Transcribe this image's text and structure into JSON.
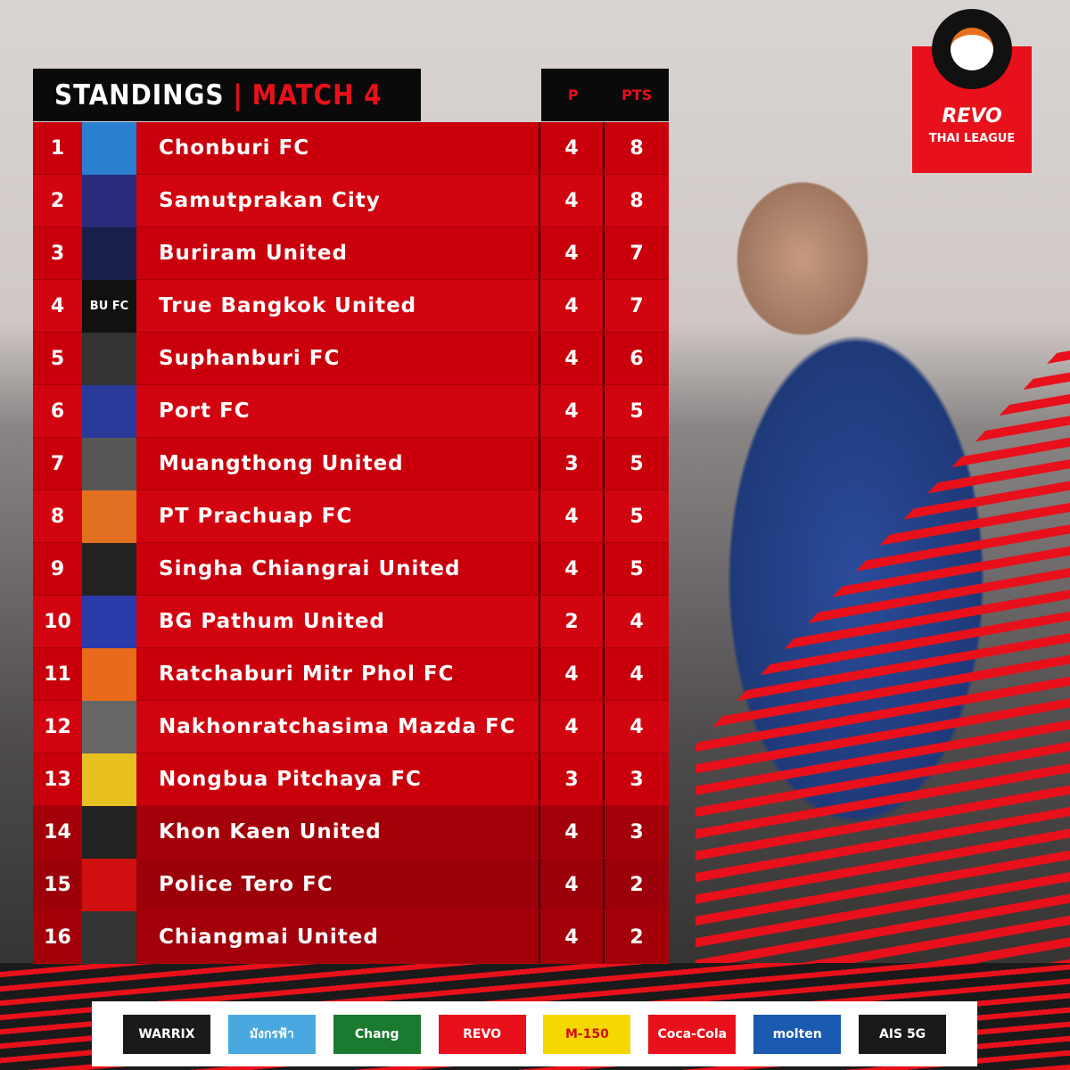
{
  "header": {
    "title": "STANDINGS",
    "separator": "|",
    "subtitle": "MATCH 4",
    "col_p": "P",
    "col_pts": "PTS"
  },
  "brand": {
    "name": "REVO",
    "league": "THAI LEAGUE"
  },
  "colors": {
    "accent": "#e8101a",
    "row": "#c9000c",
    "relegation_row": "#9c0008",
    "header_bg": "#0a0a0a"
  },
  "standings": [
    {
      "pos": "1",
      "team": "Chonburi FC",
      "p": "4",
      "pts": "8",
      "logo_color": "#2b7fd0"
    },
    {
      "pos": "2",
      "team": "Samutprakan City",
      "p": "4",
      "pts": "8",
      "logo_color": "#2a2a7a"
    },
    {
      "pos": "3",
      "team": "Buriram United",
      "p": "4",
      "pts": "7",
      "logo_color": "#1a1e4a"
    },
    {
      "pos": "4",
      "team": "True Bangkok United",
      "p": "4",
      "pts": "7",
      "logo_color": "#111111",
      "logo_text": "BU FC"
    },
    {
      "pos": "5",
      "team": "Suphanburi FC",
      "p": "4",
      "pts": "6",
      "logo_color": "#333333"
    },
    {
      "pos": "6",
      "team": "Port FC",
      "p": "4",
      "pts": "5",
      "logo_color": "#2a3a9a"
    },
    {
      "pos": "7",
      "team": "Muangthong United",
      "p": "3",
      "pts": "5",
      "logo_color": "#555555"
    },
    {
      "pos": "8",
      "team": "PT Prachuap FC",
      "p": "4",
      "pts": "5",
      "logo_color": "#e07020"
    },
    {
      "pos": "9",
      "team": "Singha Chiangrai United",
      "p": "4",
      "pts": "5",
      "logo_color": "#222222"
    },
    {
      "pos": "10",
      "team": "BG Pathum United",
      "p": "2",
      "pts": "4",
      "logo_color": "#2a3aaa"
    },
    {
      "pos": "11",
      "team": "Ratchaburi Mitr Phol FC",
      "p": "4",
      "pts": "4",
      "logo_color": "#e86a1a"
    },
    {
      "pos": "12",
      "team": "Nakhonratchasima Mazda FC",
      "p": "4",
      "pts": "4",
      "logo_color": "#666666"
    },
    {
      "pos": "13",
      "team": "Nongbua Pitchaya FC",
      "p": "3",
      "pts": "3",
      "logo_color": "#e8c020"
    },
    {
      "pos": "14",
      "team": "Khon Kaen United",
      "p": "4",
      "pts": "3",
      "logo_color": "#222222"
    },
    {
      "pos": "15",
      "team": "Police Tero FC",
      "p": "4",
      "pts": "2",
      "logo_color": "#d01010"
    },
    {
      "pos": "16",
      "team": "Chiangmai United",
      "p": "4",
      "pts": "2",
      "logo_color": "#333333"
    }
  ],
  "sponsors": [
    {
      "name": "WARRIX",
      "bg": "#1a1a1a"
    },
    {
      "name": "มังกรฟ้า",
      "bg": "#4aa8e0"
    },
    {
      "name": "Chang",
      "bg": "#1a7a30"
    },
    {
      "name": "REVO",
      "bg": "#e8101a"
    },
    {
      "name": "M-150",
      "bg": "#f5d800",
      "fg": "#d01010"
    },
    {
      "name": "Coca-Cola",
      "bg": "#e8101a"
    },
    {
      "name": "molten",
      "bg": "#1a5ab0"
    },
    {
      "name": "AIS 5G",
      "bg": "#1a1a1a"
    }
  ]
}
